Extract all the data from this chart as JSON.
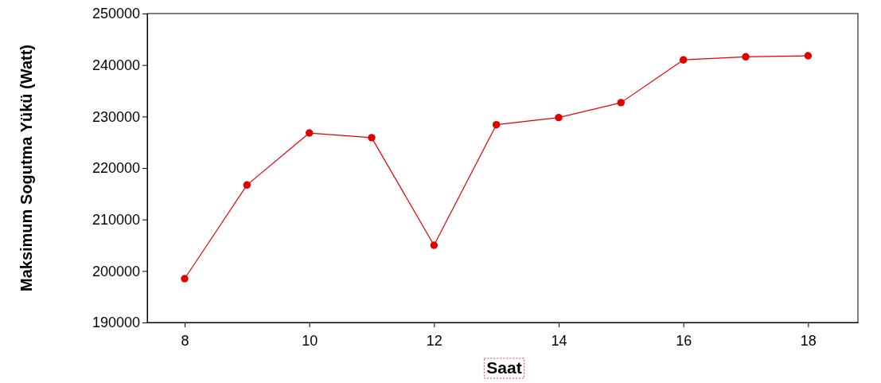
{
  "chart_data": {
    "type": "line",
    "xlabel": "Saat",
    "ylabel": "Maksimum Sogutma Yükü (Watt)",
    "x": [
      8,
      9,
      10,
      11,
      12,
      13,
      14,
      15,
      16,
      17,
      18
    ],
    "series": [
      {
        "color": "#e00000",
        "values": [
          198500,
          216700,
          226800,
          225900,
          205000,
          228400,
          229800,
          232700,
          241000,
          241600,
          241800
        ]
      }
    ],
    "xlim": [
      7.4,
      18.8
    ],
    "xticks": [
      8,
      10,
      12,
      14,
      16,
      18
    ],
    "ylim": [
      190000,
      250000
    ],
    "yticks": [
      190000,
      200000,
      210000,
      220000,
      230000,
      240000,
      250000
    ],
    "marker": "circle",
    "line_style": "solid"
  }
}
